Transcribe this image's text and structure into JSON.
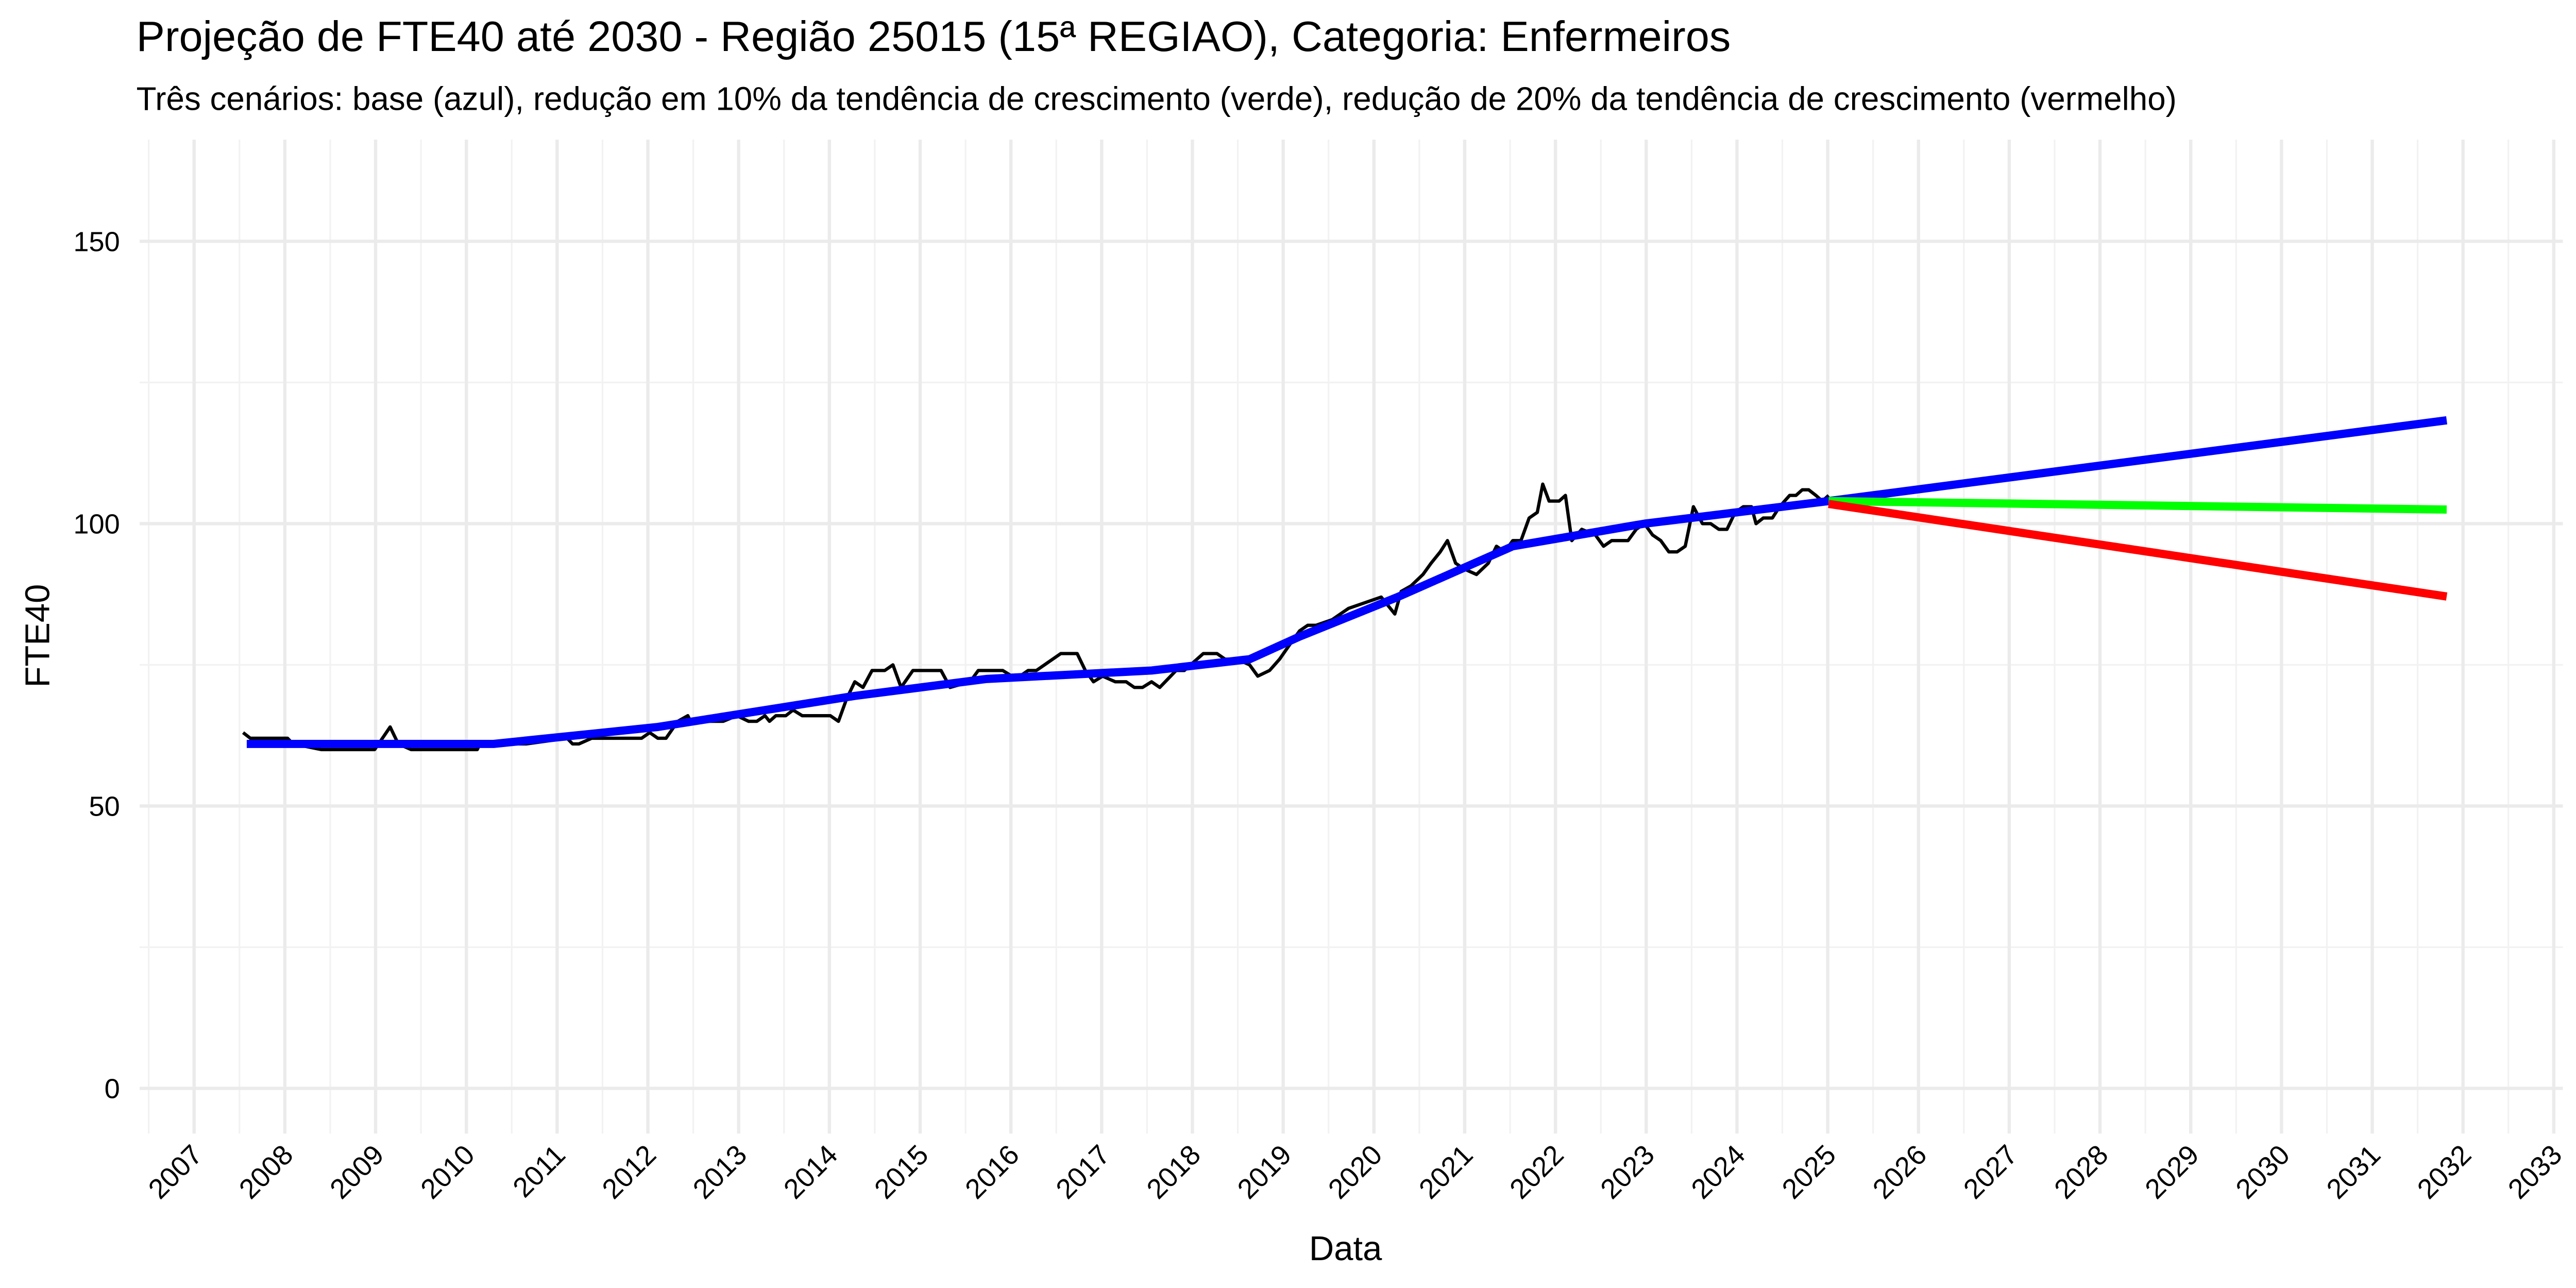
{
  "chart_data": {
    "type": "line",
    "title": "Projeção de FTE40 até 2030 - Região 25015 (15ª REGIAO), Categoria: Enfermeiros",
    "subtitle": "Três cenários: base (azul), redução em 10% da tendência de crescimento (verde), redução de 20% da tendência de crescimento (vermelho)",
    "x_label": "Data",
    "y_label": "FTE40",
    "xlim": [
      2006.4,
      2033.1
    ],
    "ylim": [
      -8,
      168
    ],
    "xticks": [
      2007,
      2008,
      2009,
      2010,
      2011,
      2012,
      2013,
      2014,
      2015,
      2016,
      2017,
      2018,
      2019,
      2020,
      2021,
      2022,
      2023,
      2024,
      2025,
      2026,
      2027,
      2028,
      2029,
      2030,
      2031,
      2032,
      2033
    ],
    "yticks": [
      0,
      50,
      100,
      150
    ],
    "xminor": [
      2006.5,
      2007.5,
      2008.5,
      2009.5,
      2010.5,
      2011.5,
      2012.5,
      2013.5,
      2014.5,
      2015.5,
      2016.5,
      2017.5,
      2018.5,
      2019.5,
      2020.5,
      2021.5,
      2022.5,
      2023.5,
      2024.5,
      2025.5,
      2026.5,
      2027.5,
      2028.5,
      2029.5,
      2030.5,
      2031.5,
      2032.5
    ],
    "yminor": [
      25,
      75,
      125
    ],
    "grid": true,
    "series": [
      {
        "color": "#000000",
        "width": 2,
        "x": [
          2007.54,
          2007.62,
          2008.03,
          2008.09,
          2008.4,
          2008.99,
          2009.16,
          2009.25,
          2009.39,
          2010.12,
          2010.15,
          2010.66,
          2011.11,
          2011.17,
          2011.24,
          2011.38,
          2011.93,
          2012.02,
          2012.11,
          2012.2,
          2012.33,
          2012.44,
          2012.47,
          2012.83,
          2012.98,
          2013.11,
          2013.2,
          2013.29,
          2013.34,
          2013.41,
          2013.52,
          2013.6,
          2013.7,
          2014.01,
          2014.1,
          2014.19,
          2014.28,
          2014.37,
          2014.47,
          2014.61,
          2014.7,
          2014.79,
          2014.92,
          2015.23,
          2015.33,
          2015.55,
          2015.64,
          2015.91,
          2016.01,
          2016.1,
          2016.19,
          2016.28,
          2016.37,
          2016.55,
          2016.73,
          2016.82,
          2016.91,
          2017.01,
          2017.15,
          2017.27,
          2017.36,
          2017.45,
          2017.55,
          2017.64,
          2017.76,
          2017.82,
          2017.91,
          2018.05,
          2018.12,
          2018.27,
          2018.36,
          2018.49,
          2018.63,
          2018.72,
          2018.85,
          2018.96,
          2019.09,
          2019.18,
          2019.27,
          2019.36,
          2019.54,
          2019.72,
          2019.9,
          2020.08,
          2020.23,
          2020.3,
          2020.41,
          2020.54,
          2020.63,
          2020.73,
          2020.81,
          2020.9,
          2020.99,
          2021.13,
          2021.26,
          2021.35,
          2021.44,
          2021.53,
          2021.62,
          2021.71,
          2021.8,
          2021.86,
          2021.93,
          2022.04,
          2022.11,
          2022.18,
          2022.29,
          2022.44,
          2022.53,
          2022.62,
          2022.8,
          2022.89,
          2022.98,
          2023.07,
          2023.16,
          2023.25,
          2023.34,
          2023.43,
          2023.52,
          2023.62,
          2023.71,
          2023.8,
          2023.89,
          2023.98,
          2024.07,
          2024.16,
          2024.21,
          2024.29,
          2024.39,
          2024.47,
          2024.58,
          2024.65,
          2024.72,
          2024.79,
          2024.87,
          2024.94,
          2025.01
        ],
        "values": [
          63,
          62,
          62,
          61,
          60,
          60,
          64,
          61,
          60,
          60,
          61,
          61,
          62,
          61,
          61,
          62,
          62,
          63,
          62,
          62,
          65,
          66,
          65,
          65,
          66,
          65,
          65,
          66,
          65,
          66,
          66,
          67,
          66,
          66,
          65,
          69,
          72,
          71,
          74,
          74,
          75,
          71,
          74,
          74,
          71,
          72,
          74,
          74,
          73,
          73,
          74,
          74,
          75,
          77,
          77,
          74,
          72,
          73,
          72,
          72,
          71,
          71,
          72,
          71,
          73,
          74,
          74,
          76,
          77,
          77,
          76,
          76,
          75,
          73,
          74,
          76,
          79,
          81,
          82,
          82,
          83,
          85,
          86,
          87,
          84,
          88,
          89,
          91,
          93,
          95,
          97,
          93,
          92,
          91,
          93,
          96,
          95,
          97,
          97,
          101,
          102,
          107,
          104,
          104,
          105,
          97,
          99,
          98,
          96,
          97,
          97,
          99,
          100,
          98,
          97,
          95,
          95,
          96,
          103,
          100,
          100,
          99,
          99,
          102,
          103,
          103,
          100,
          101,
          101,
          103,
          105,
          105,
          106,
          106,
          105,
          104,
          105
        ]
      },
      {
        "color": "#0000ff",
        "width": 5,
        "x": [
          2007.58,
          2010.3,
          2012.11,
          2014.28,
          2015.73,
          2017.55,
          2018.63,
          2019.18,
          2020.26,
          2021.53,
          2022.98,
          2025.01,
          2031.82
        ],
        "values": [
          61,
          61,
          64,
          69.5,
          72.5,
          74,
          76,
          80,
          87,
          96,
          100,
          104,
          118.3
        ]
      },
      {
        "color": "#00ff00",
        "width": 5,
        "x": [
          2025.01,
          2031.82
        ],
        "values": [
          104,
          102.5
        ]
      },
      {
        "color": "#ff0000",
        "width": 5,
        "x": [
          2025.01,
          2031.82
        ],
        "values": [
          103.5,
          87.1
        ]
      }
    ]
  }
}
